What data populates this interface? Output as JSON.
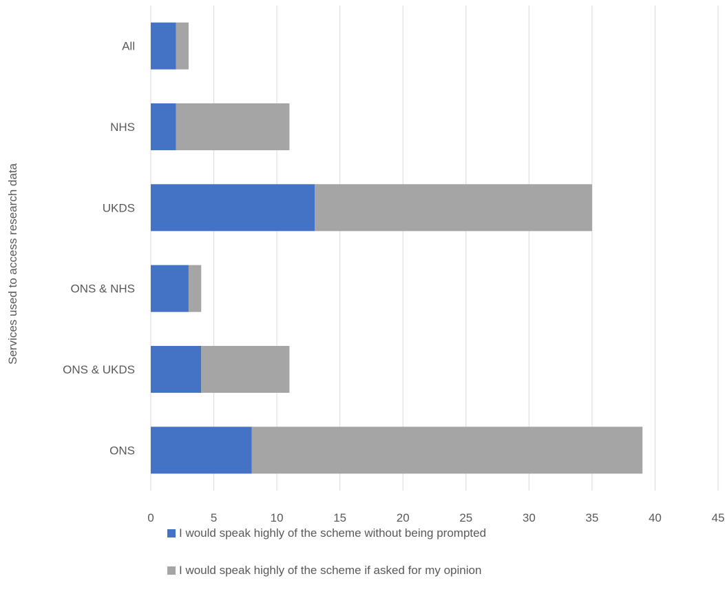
{
  "chart_data": {
    "type": "bar",
    "orientation": "horizontal",
    "stacked": true,
    "categories": [
      "ONS",
      "ONS & UKDS",
      "ONS & NHS",
      "UKDS",
      "NHS",
      "All"
    ],
    "series": [
      {
        "name": "I would speak highly of the scheme without being prompted",
        "color": "#4472c4",
        "values": [
          8,
          4,
          3,
          13,
          2,
          2
        ]
      },
      {
        "name": "I would speak highly of the scheme if asked for my opinion",
        "color": "#a5a5a5",
        "values": [
          31,
          7,
          1,
          22,
          9,
          1
        ]
      }
    ],
    "title": "",
    "xlabel": "",
    "ylabel": "Services used to access research data",
    "xlim": [
      0,
      45
    ],
    "xticks": [
      0,
      5,
      10,
      15,
      20,
      25,
      30,
      35,
      40,
      45
    ],
    "grid": "vertical",
    "legend_position": "bottom"
  }
}
